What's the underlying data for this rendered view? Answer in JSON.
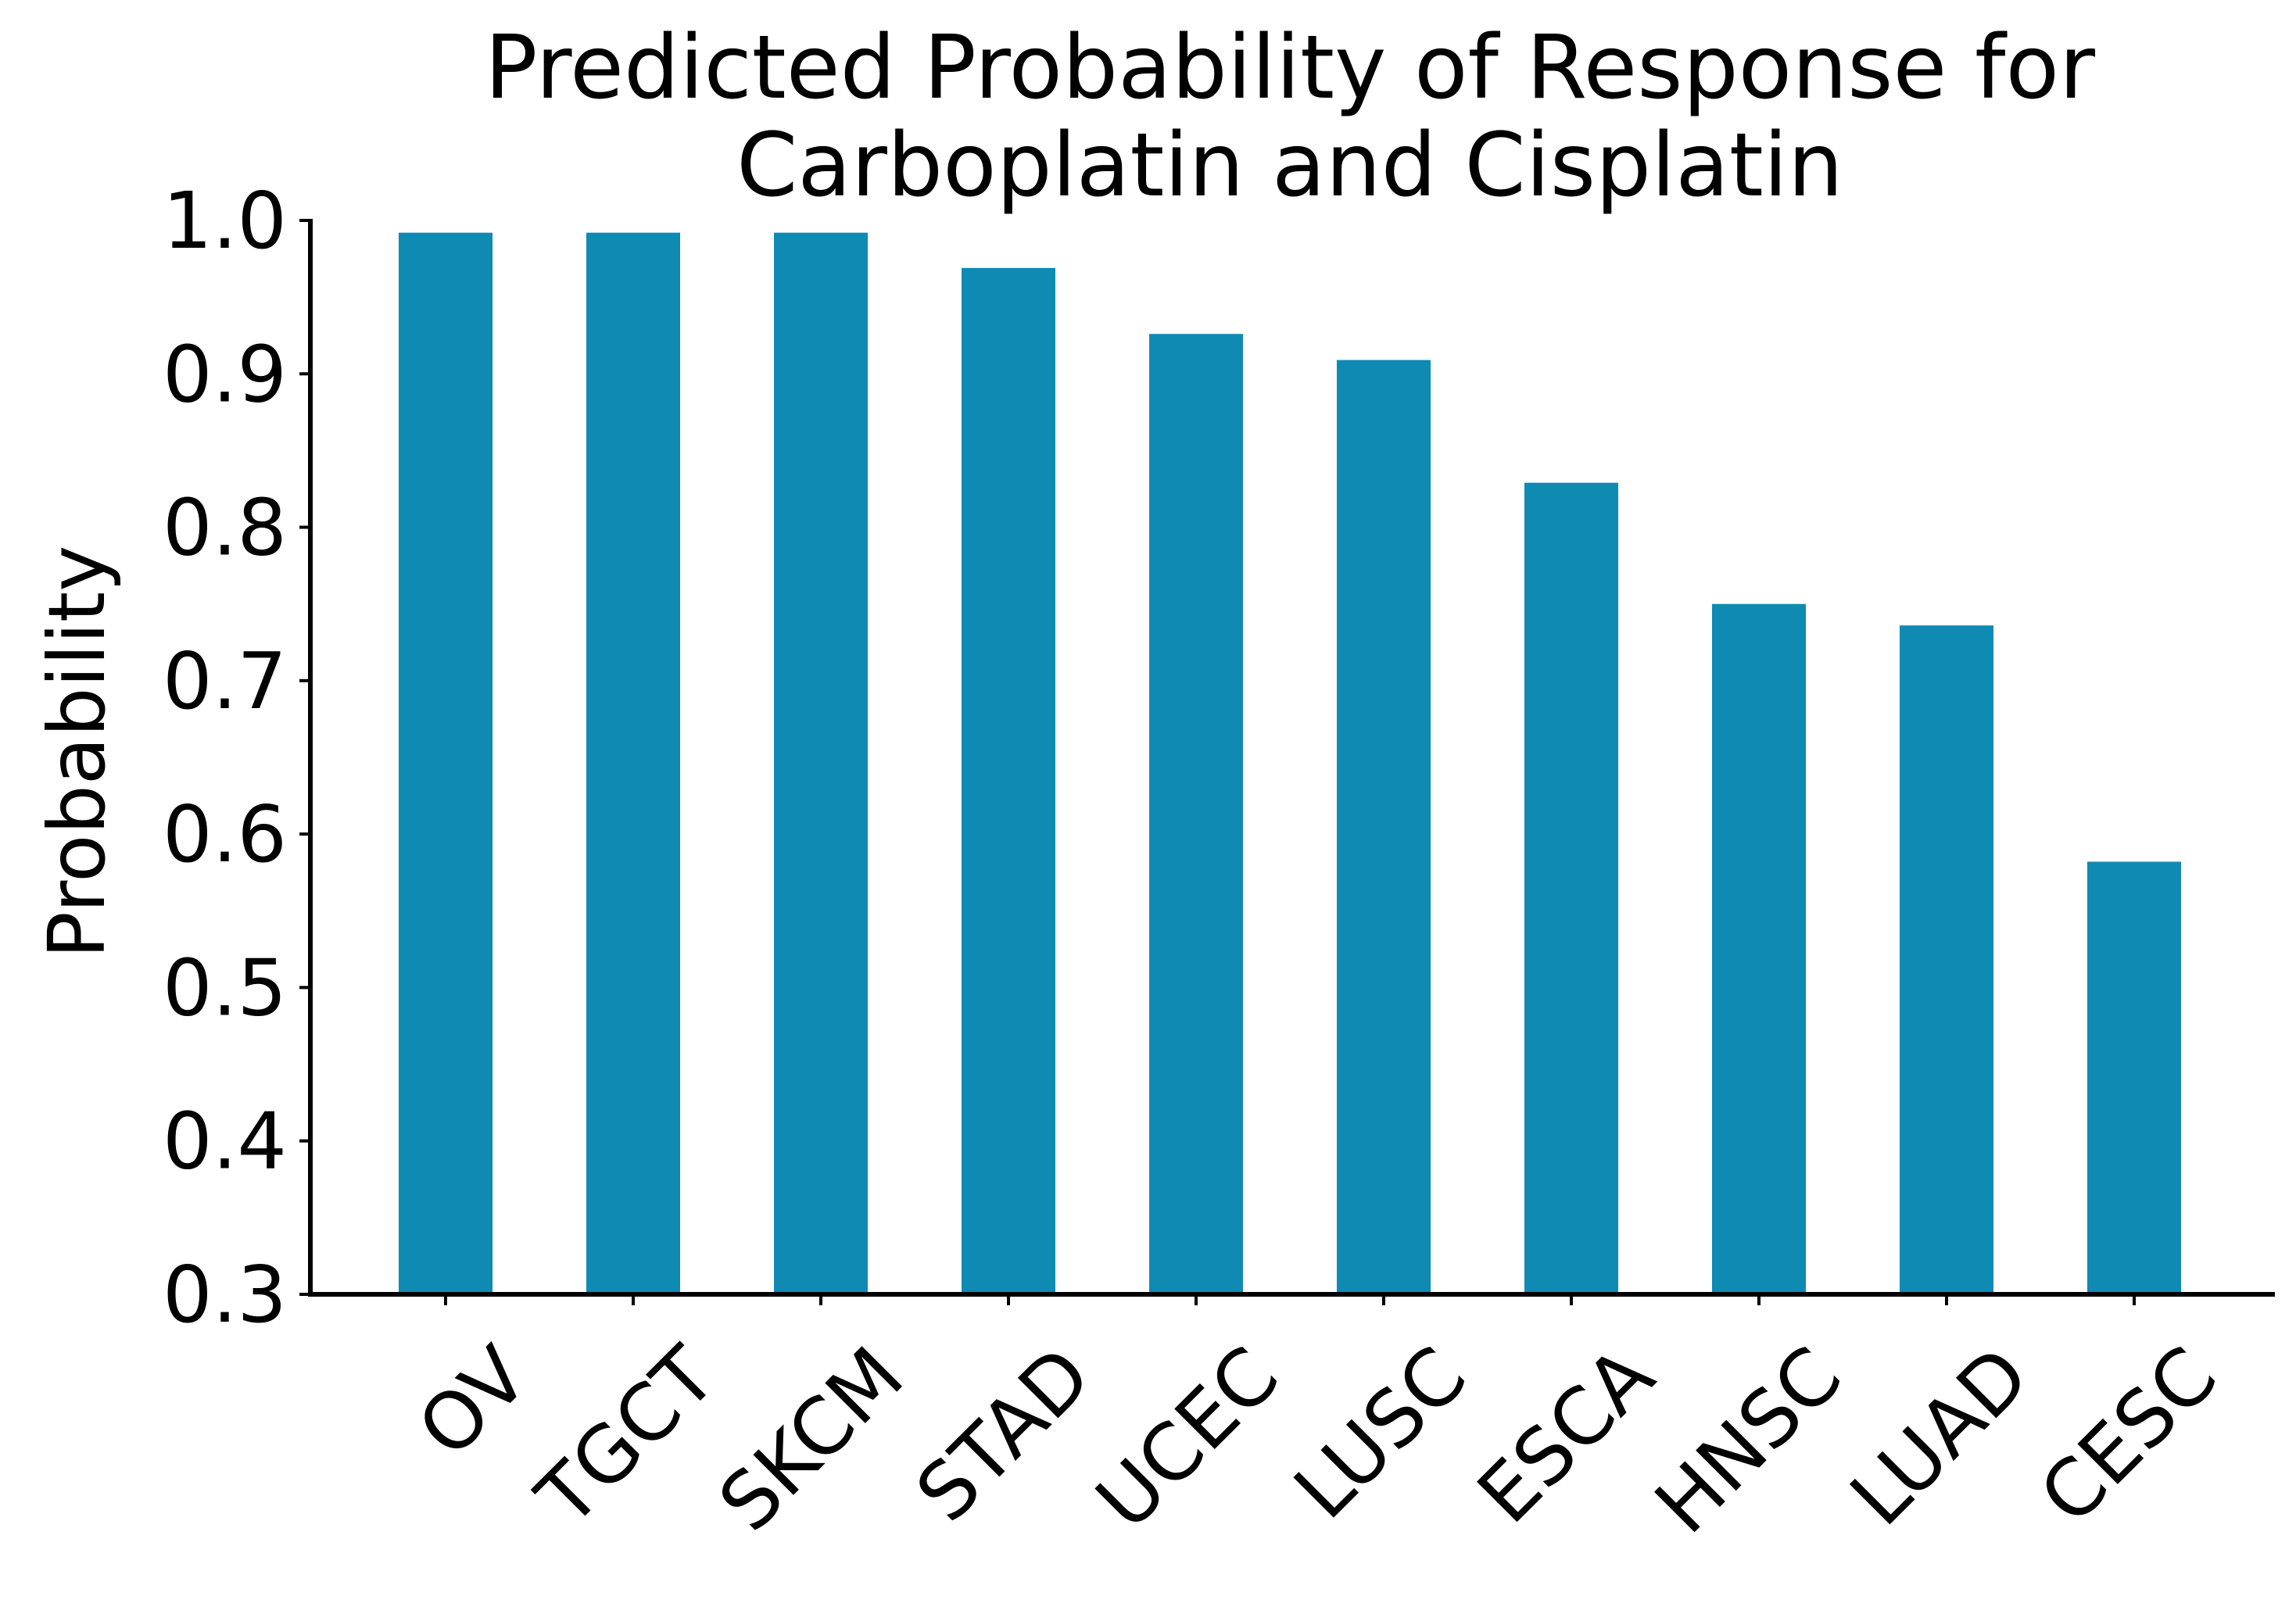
{
  "colors": {
    "bar": "#0f8ab2",
    "axis": "#000000",
    "background": "#ffffff"
  },
  "chart_data": {
    "type": "bar",
    "title": [
      "Predicted Probability of Response for",
      "Carboplatin and Cisplatin"
    ],
    "xlabel": "",
    "ylabel": "Probability",
    "categories": [
      "OV",
      "TGCT",
      "SKCM",
      "STAD",
      "UCEC",
      "LUSC",
      "ESCA",
      "HNSC",
      "LUAD",
      "CESC"
    ],
    "values": [
      0.992,
      0.992,
      0.992,
      0.969,
      0.926,
      0.909,
      0.829,
      0.75,
      0.736,
      0.582
    ],
    "ylim": [
      0.3,
      1.0
    ],
    "yticks": [
      "0.3",
      "0.4",
      "0.5",
      "0.6",
      "0.7",
      "0.8",
      "0.9",
      "1.0"
    ],
    "grid": false,
    "legend": "none"
  }
}
